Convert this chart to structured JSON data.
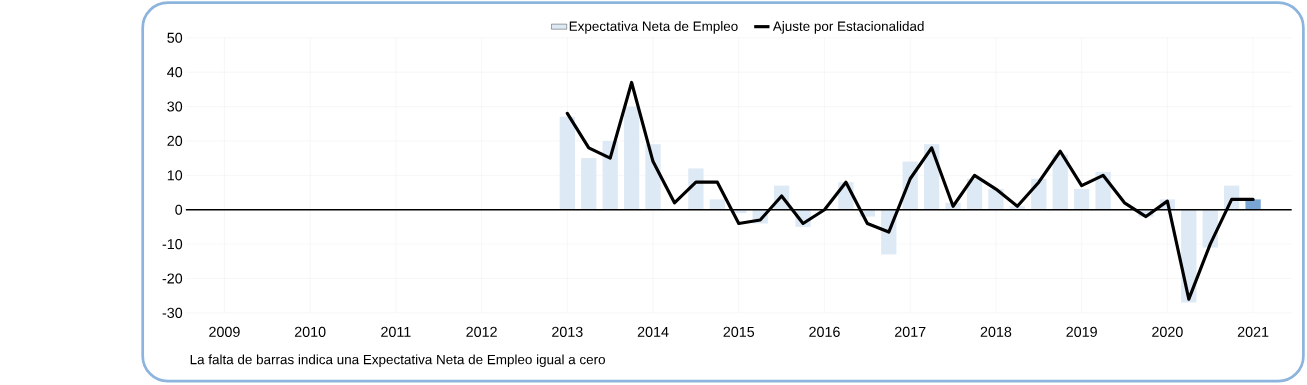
{
  "chart_data": {
    "type": "bar",
    "categories": [
      "2009",
      null,
      null,
      null,
      "2010",
      null,
      null,
      null,
      "2011",
      null,
      null,
      null,
      "2012",
      null,
      null,
      null,
      "2013",
      null,
      null,
      null,
      "2014",
      null,
      null,
      null,
      "2015",
      null,
      null,
      null,
      "2016",
      null,
      null,
      null,
      "2017",
      null,
      null,
      null,
      "2018",
      null,
      null,
      null,
      "2019",
      null,
      null,
      null,
      "2020",
      null,
      null,
      null,
      "2021"
    ],
    "series": [
      {
        "name": "Expectativa Neta de Empleo",
        "color": "#dde9f5",
        "colors": [
          "#dde9f5",
          "#dde9f5",
          "#dde9f5",
          "#dde9f5",
          "#dde9f5",
          "#dde9f5",
          "#dde9f5",
          "#dde9f5",
          "#dde9f5",
          "#dde9f5",
          "#dde9f5",
          "#dde9f5",
          "#dde9f5",
          "#dde9f5",
          "#dde9f5",
          "#dde9f5",
          "#dde9f5",
          "#dde9f5",
          "#dde9f5",
          "#dde9f5",
          "#dde9f5",
          "#dde9f5",
          "#dde9f5",
          "#dde9f5",
          "#dde9f5",
          "#dde9f5",
          "#dde9f5",
          "#dde9f5",
          "#dde9f5",
          "#dde9f5",
          "#dde9f5",
          "#dde9f5",
          "#dde9f5",
          "#dde9f5",
          "#dde9f5",
          "#dde9f5",
          "#dde9f5",
          "#dde9f5",
          "#dde9f5",
          "#dde9f5",
          "#dde9f5",
          "#dde9f5",
          "#dde9f5",
          "#dde9f5",
          "#dde9f5",
          "#dde9f5",
          "#dde9f5",
          "#dde9f5",
          "#7aa6d6"
        ],
        "values": [
          0,
          0,
          0,
          0,
          0,
          0,
          0,
          0,
          0,
          0,
          0,
          0,
          0,
          0,
          0,
          0,
          27,
          15,
          20,
          30,
          19,
          0,
          12,
          3,
          -1,
          -4,
          7,
          -5,
          0,
          8,
          -2,
          -13,
          14,
          19,
          2,
          9,
          6,
          1,
          9,
          16,
          6,
          11,
          0,
          -2,
          3,
          -27,
          -11,
          7,
          3
        ]
      },
      {
        "name": "Ajuste por Estacionalidad",
        "type": "line",
        "color": "#000000",
        "values": [
          null,
          null,
          null,
          null,
          null,
          null,
          null,
          null,
          null,
          null,
          null,
          null,
          null,
          null,
          null,
          null,
          28,
          18,
          15,
          37,
          14,
          2,
          8,
          8,
          -4,
          -3,
          4,
          -4,
          0,
          8,
          -4,
          -6.5,
          9,
          18,
          1,
          10,
          6,
          1,
          8,
          17,
          7,
          10,
          2,
          -2,
          2.5,
          -26,
          -10,
          3,
          3
        ]
      }
    ],
    "ylim": [
      -30,
      50
    ],
    "yticks": [
      -30,
      -20,
      -10,
      0,
      10,
      20,
      30,
      40,
      50
    ],
    "grid": true,
    "legend": "top",
    "ref_lines": [
      {
        "axis": "y",
        "value": 0,
        "color": "#000000"
      }
    ],
    "annotations": [
      "La falta de barras indica una Expectativa Neta de Empleo igual a cero"
    ]
  }
}
